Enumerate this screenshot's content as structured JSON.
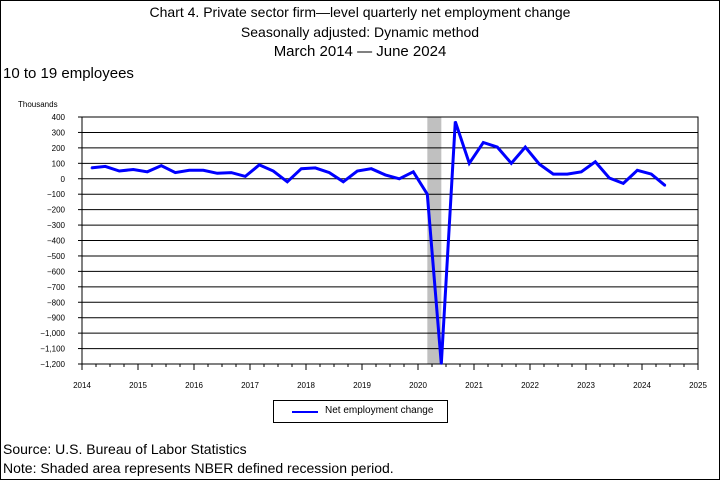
{
  "title_lines": [
    "Chart 4. Private sector firm—level quarterly net employment change",
    "Seasonally adjusted: Dynamic method",
    "March 2014  — June 2024"
  ],
  "subtitle": "10 to 19 employees",
  "source": "Source: U.S. Bureau of Labor Statistics",
  "note": "Note: Shaded area represents NBER defined recession period.",
  "colors": {
    "line": "#0000ff",
    "recession": "#c0c0c0",
    "grid": "#000000"
  },
  "chart_data": {
    "type": "line",
    "ylabel": "Thousands",
    "xlabel": "",
    "ylim": [
      -1200,
      400
    ],
    "xlim": [
      2014,
      2025
    ],
    "y_ticks": [
      400,
      300,
      200,
      100,
      0,
      -100,
      -200,
      -300,
      -400,
      -500,
      -600,
      -700,
      -800,
      -900,
      -1000,
      -1100,
      -1200
    ],
    "y_tick_labels": [
      "400",
      "300",
      "200",
      "100",
      "0",
      "−100",
      "−200",
      "−300",
      "−400",
      "−500",
      "−600",
      "−700",
      "−800",
      "−900",
      "−1,000",
      "−1,100",
      "−1,200"
    ],
    "x_ticks": [
      "2014",
      "2015",
      "2016",
      "2017",
      "2018",
      "2019",
      "2020",
      "2021",
      "2022",
      "2023",
      "2024",
      "2025"
    ],
    "grid": true,
    "legend": "bottom-center",
    "recession": {
      "start": "2020-03",
      "end": "2020-06"
    },
    "series": [
      {
        "name": "Net employment change",
        "x": [
          "2014-03",
          "2014-06",
          "2014-09",
          "2014-12",
          "2015-03",
          "2015-06",
          "2015-09",
          "2015-12",
          "2016-03",
          "2016-06",
          "2016-09",
          "2016-12",
          "2017-03",
          "2017-06",
          "2017-09",
          "2017-12",
          "2018-03",
          "2018-06",
          "2018-09",
          "2018-12",
          "2019-03",
          "2019-06",
          "2019-09",
          "2019-12",
          "2020-03",
          "2020-06",
          "2020-09",
          "2020-12",
          "2021-03",
          "2021-06",
          "2021-09",
          "2021-12",
          "2022-03",
          "2022-06",
          "2022-09",
          "2022-12",
          "2023-03",
          "2023-06",
          "2023-09",
          "2023-12",
          "2024-03",
          "2024-06"
        ],
        "values": [
          70,
          80,
          50,
          60,
          45,
          85,
          40,
          55,
          55,
          35,
          40,
          15,
          90,
          50,
          -20,
          65,
          70,
          40,
          -20,
          50,
          65,
          25,
          0,
          45,
          -100,
          -1200,
          370,
          100,
          235,
          205,
          100,
          205,
          95,
          30,
          30,
          45,
          110,
          5,
          -30,
          55,
          30,
          -45
        ]
      }
    ]
  },
  "legend": {
    "label": "Net employment change"
  }
}
